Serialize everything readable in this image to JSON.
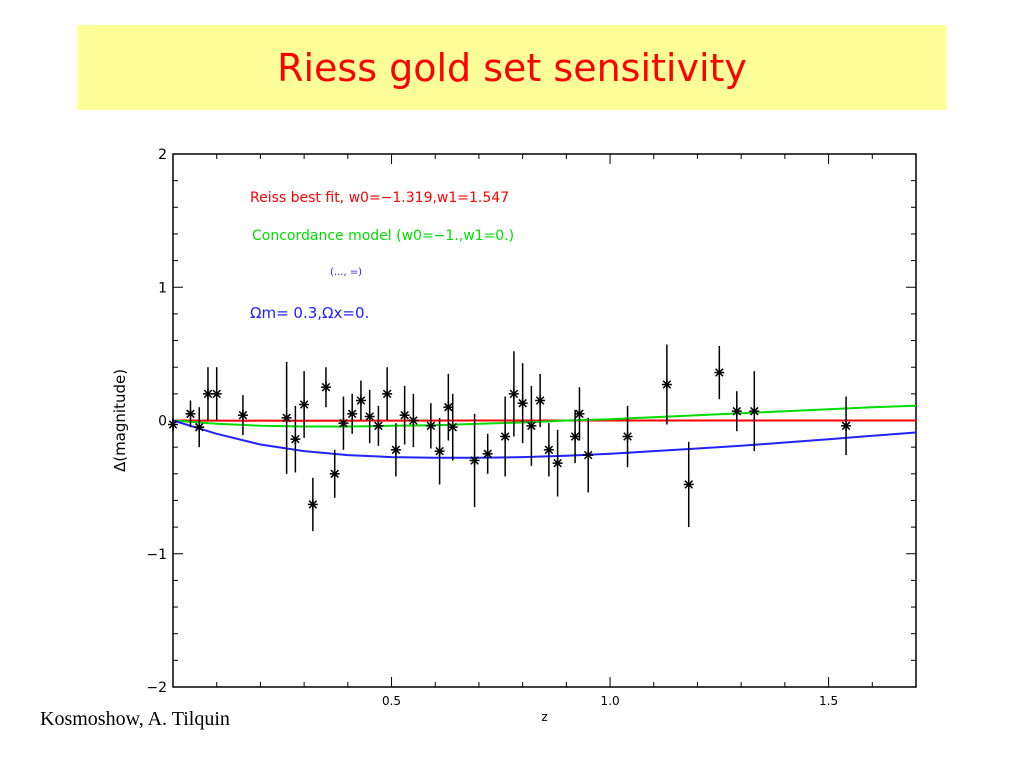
{
  "slide": {
    "title": "Riess gold set sensitivity",
    "credit": "Kosmoshow, A. Tilquin"
  },
  "chart_data": {
    "type": "scatter",
    "title": "",
    "xlabel": "z",
    "ylabel": "Δ(magnitude)",
    "xlim": [
      0,
      1.7
    ],
    "ylim": [
      -2,
      2
    ],
    "x_ticks": [
      0.5,
      1.0,
      1.5
    ],
    "x_tick_labels": [
      "0.5",
      "1.0",
      "1.5"
    ],
    "y_ticks": [
      -2,
      -1,
      0,
      1,
      2
    ],
    "y_tick_labels": [
      "−2",
      "−1",
      "0",
      "1",
      "2"
    ],
    "legend": [
      {
        "text": "Reiss best fit, w0=−1.319,w1=1.547",
        "color": "#ff0000"
      },
      {
        "text": "Concordance model (w0=−1.,w1=0.)",
        "color": "#00dd00"
      },
      {
        "text": "(..., =)",
        "color": "#2222ff"
      },
      {
        "text": "Ωm= 0.3,Ωx=0.",
        "color": "#2222ff"
      }
    ],
    "series": [
      {
        "name": "Reiss best fit",
        "kind": "line",
        "color": "#ff0000",
        "x": [
          0.0,
          0.1,
          0.3,
          0.5,
          0.7,
          0.9,
          1.1,
          1.3,
          1.5,
          1.7
        ],
        "y": [
          0.0,
          -0.001,
          -0.002,
          -0.001,
          0.0,
          0.0,
          0.0,
          0.0,
          0.0,
          0.0
        ]
      },
      {
        "name": "Concordance model",
        "kind": "line",
        "color": "#00dd00",
        "x": [
          0.0,
          0.1,
          0.2,
          0.3,
          0.4,
          0.5,
          0.6,
          0.7,
          0.8,
          0.9,
          1.0,
          1.1,
          1.2,
          1.3,
          1.4,
          1.5,
          1.6,
          1.7
        ],
        "y": [
          0.0,
          -0.025,
          -0.04,
          -0.045,
          -0.045,
          -0.04,
          -0.035,
          -0.025,
          -0.015,
          0.0,
          0.01,
          0.025,
          0.04,
          0.055,
          0.07,
          0.085,
          0.1,
          0.11
        ]
      },
      {
        "name": "Ωm= 0.3,Ωx=0.",
        "kind": "line",
        "color": "#2222ff",
        "x": [
          0.0,
          0.1,
          0.2,
          0.3,
          0.4,
          0.5,
          0.6,
          0.7,
          0.8,
          0.9,
          1.0,
          1.1,
          1.2,
          1.3,
          1.4,
          1.5,
          1.6,
          1.7
        ],
        "y": [
          0.0,
          -0.1,
          -0.18,
          -0.23,
          -0.26,
          -0.275,
          -0.28,
          -0.28,
          -0.275,
          -0.265,
          -0.25,
          -0.23,
          -0.21,
          -0.19,
          -0.165,
          -0.14,
          -0.115,
          -0.09
        ]
      },
      {
        "name": "data",
        "kind": "errorbar",
        "color": "#000000",
        "points": [
          {
            "x": 0.0,
            "y": -0.03,
            "err": 0.05
          },
          {
            "x": 0.04,
            "y": 0.05,
            "err": 0.1
          },
          {
            "x": 0.06,
            "y": -0.05,
            "err": 0.15
          },
          {
            "x": 0.08,
            "y": 0.2,
            "err": 0.2
          },
          {
            "x": 0.1,
            "y": 0.2,
            "err": 0.2
          },
          {
            "x": 0.16,
            "y": 0.04,
            "err": 0.15
          },
          {
            "x": 0.26,
            "y": 0.02,
            "err": 0.42
          },
          {
            "x": 0.28,
            "y": -0.14,
            "err": 0.25
          },
          {
            "x": 0.3,
            "y": 0.12,
            "err": 0.25
          },
          {
            "x": 0.32,
            "y": -0.63,
            "err": 0.2
          },
          {
            "x": 0.35,
            "y": 0.25,
            "err": 0.15
          },
          {
            "x": 0.37,
            "y": -0.4,
            "err": 0.18
          },
          {
            "x": 0.39,
            "y": -0.02,
            "err": 0.2
          },
          {
            "x": 0.41,
            "y": 0.05,
            "err": 0.15
          },
          {
            "x": 0.43,
            "y": 0.15,
            "err": 0.15
          },
          {
            "x": 0.45,
            "y": 0.03,
            "err": 0.2
          },
          {
            "x": 0.47,
            "y": -0.04,
            "err": 0.15
          },
          {
            "x": 0.49,
            "y": 0.2,
            "err": 0.2
          },
          {
            "x": 0.51,
            "y": -0.22,
            "err": 0.2
          },
          {
            "x": 0.53,
            "y": 0.04,
            "err": 0.22
          },
          {
            "x": 0.55,
            "y": 0.0,
            "err": 0.2
          },
          {
            "x": 0.59,
            "y": -0.04,
            "err": 0.17
          },
          {
            "x": 0.61,
            "y": -0.23,
            "err": 0.25
          },
          {
            "x": 0.63,
            "y": 0.1,
            "err": 0.25
          },
          {
            "x": 0.64,
            "y": -0.05,
            "err": 0.25
          },
          {
            "x": 0.69,
            "y": -0.3,
            "err": 0.35
          },
          {
            "x": 0.72,
            "y": -0.25,
            "err": 0.15
          },
          {
            "x": 0.76,
            "y": -0.12,
            "err": 0.3
          },
          {
            "x": 0.78,
            "y": 0.2,
            "err": 0.32
          },
          {
            "x": 0.8,
            "y": 0.13,
            "err": 0.3
          },
          {
            "x": 0.82,
            "y": -0.04,
            "err": 0.3
          },
          {
            "x": 0.84,
            "y": 0.15,
            "err": 0.2
          },
          {
            "x": 0.86,
            "y": -0.22,
            "err": 0.2
          },
          {
            "x": 0.88,
            "y": -0.32,
            "err": 0.25
          },
          {
            "x": 0.92,
            "y": -0.12,
            "err": 0.2
          },
          {
            "x": 0.93,
            "y": 0.05,
            "err": 0.2
          },
          {
            "x": 0.95,
            "y": -0.26,
            "err": 0.28
          },
          {
            "x": 1.04,
            "y": -0.12,
            "err": 0.23
          },
          {
            "x": 1.13,
            "y": 0.27,
            "err": 0.3
          },
          {
            "x": 1.18,
            "y": -0.48,
            "err": 0.32
          },
          {
            "x": 1.25,
            "y": 0.36,
            "err": 0.2
          },
          {
            "x": 1.29,
            "y": 0.07,
            "err": 0.15
          },
          {
            "x": 1.33,
            "y": 0.07,
            "err": 0.3
          },
          {
            "x": 1.54,
            "y": -0.04,
            "err": 0.22
          }
        ]
      }
    ]
  }
}
